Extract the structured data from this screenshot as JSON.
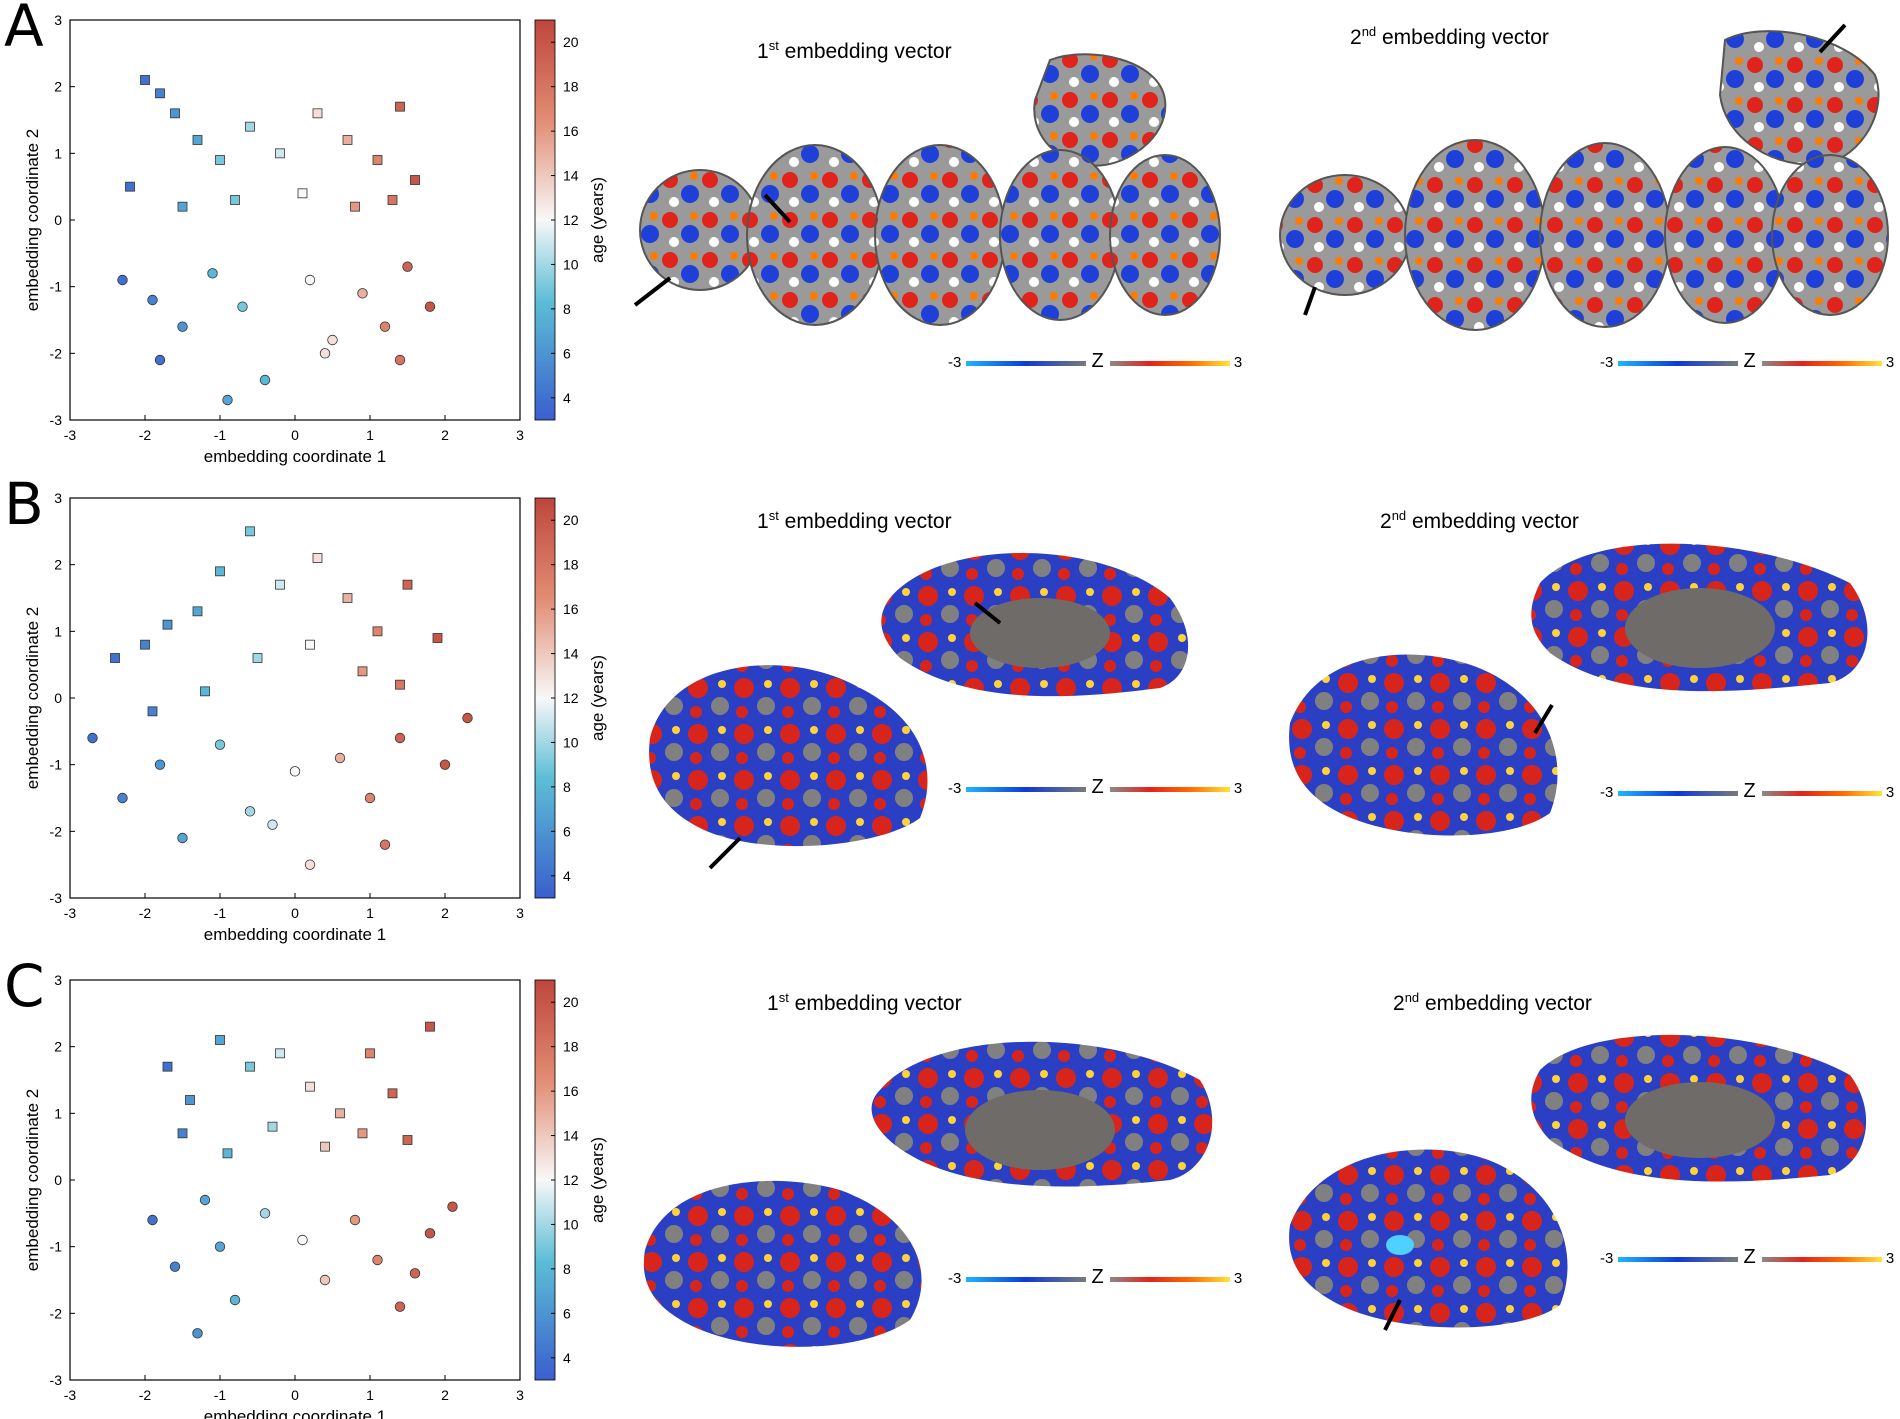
{
  "panels": [
    {
      "letter": "A",
      "xlabel": "embedding coordinate 1",
      "ylabel": "embedding coordinate 2",
      "colorbar_label": "age (years)",
      "colorbar_ticks": [
        "20",
        "18",
        "16",
        "14",
        "12",
        "10",
        "8",
        "6",
        "4"
      ],
      "x_ticks": [
        "-3",
        "-2",
        "-1",
        "0",
        "1",
        "2",
        "3"
      ],
      "y_ticks": [
        "3",
        "2",
        "1",
        "0",
        "-1",
        "-2",
        "-3"
      ],
      "vec1_ord": "1",
      "vec1_sup": "st",
      "vec1_rest": " embedding vector",
      "vec2_ord": "2",
      "vec2_sup": "nd",
      "vec2_rest": " embedding vector",
      "z_min": "-3",
      "z_label": "Z",
      "z_max": "3"
    },
    {
      "letter": "B",
      "xlabel": "embedding coordinate 1",
      "ylabel": "embedding coordinate 2",
      "colorbar_label": "age (years)",
      "colorbar_ticks": [
        "20",
        "18",
        "16",
        "14",
        "12",
        "10",
        "8",
        "6",
        "4"
      ],
      "x_ticks": [
        "-3",
        "-2",
        "-1",
        "0",
        "1",
        "2",
        "3"
      ],
      "y_ticks": [
        "3",
        "2",
        "1",
        "0",
        "-1",
        "-2",
        "-3"
      ],
      "vec1_ord": "1",
      "vec1_sup": "st",
      "vec1_rest": " embedding vector",
      "vec2_ord": "2",
      "vec2_sup": "nd",
      "vec2_rest": " embedding vector",
      "z_min": "-3",
      "z_label": "Z",
      "z_max": "3"
    },
    {
      "letter": "C",
      "xlabel": "embedding coordinate 1",
      "ylabel": "embedding coordinate 2",
      "colorbar_label": "age (years)",
      "colorbar_ticks": [
        "20",
        "18",
        "16",
        "14",
        "12",
        "10",
        "8",
        "6",
        "4"
      ],
      "x_ticks": [
        "-3",
        "-2",
        "-1",
        "0",
        "1",
        "2",
        "3"
      ],
      "y_ticks": [
        "3",
        "2",
        "1",
        "0",
        "-1",
        "-2",
        "-3"
      ],
      "vec1_ord": "1",
      "vec1_sup": "st",
      "vec1_rest": " embedding vector",
      "vec2_ord": "2",
      "vec2_sup": "nd",
      "vec2_rest": " embedding vector",
      "z_min": "-3",
      "z_label": "Z",
      "z_max": "3"
    }
  ],
  "chart_data": [
    {
      "type": "scatter",
      "title": "",
      "xlabel": "embedding coordinate 1",
      "ylabel": "embedding coordinate 2",
      "xlim": [
        -3,
        3
      ],
      "ylim": [
        -3,
        3
      ],
      "colorbar": {
        "label": "age (years)",
        "range": [
          3,
          21
        ],
        "colormap": "blue-white-red"
      },
      "markers": "squares and circles",
      "series": [
        {
          "values": [
            [
              -2.0,
              2.1,
              4
            ],
            [
              -1.8,
              1.9,
              5
            ],
            [
              -1.6,
              1.6,
              6
            ],
            [
              -1.3,
              1.2,
              7
            ],
            [
              -1.0,
              0.9,
              9
            ],
            [
              -0.6,
              1.4,
              10
            ],
            [
              -0.2,
              1.0,
              11
            ],
            [
              0.3,
              1.6,
              13
            ],
            [
              0.7,
              1.2,
              15
            ],
            [
              1.1,
              0.9,
              17
            ],
            [
              1.4,
              1.7,
              19
            ],
            [
              1.6,
              0.6,
              20
            ],
            [
              -2.2,
              0.5,
              4
            ],
            [
              -1.5,
              0.2,
              7
            ],
            [
              -0.8,
              0.3,
              9
            ],
            [
              0.1,
              0.4,
              12
            ],
            [
              0.8,
              0.2,
              16
            ],
            [
              1.3,
              0.3,
              18
            ]
          ]
        },
        {
          "values": [
            [
              -2.3,
              -0.9,
              4
            ],
            [
              -1.9,
              -1.2,
              5
            ],
            [
              -1.5,
              -1.6,
              6
            ],
            [
              -1.1,
              -0.8,
              8
            ],
            [
              -0.7,
              -1.3,
              9
            ],
            [
              -0.4,
              -2.4,
              8
            ],
            [
              0.2,
              -0.9,
              12
            ],
            [
              0.5,
              -1.8,
              13
            ],
            [
              0.9,
              -1.1,
              15
            ],
            [
              1.2,
              -1.6,
              17
            ],
            [
              1.5,
              -0.7,
              19
            ],
            [
              1.8,
              -1.3,
              20
            ],
            [
              -1.8,
              -2.1,
              4
            ],
            [
              -0.9,
              -2.7,
              7
            ],
            [
              0.4,
              -2.0,
              13
            ],
            [
              1.4,
              -2.1,
              18
            ]
          ]
        }
      ]
    },
    {
      "type": "scatter",
      "title": "",
      "xlabel": "embedding coordinate 1",
      "ylabel": "embedding coordinate 2",
      "xlim": [
        -3,
        3
      ],
      "ylim": [
        -3,
        3
      ],
      "colorbar": {
        "label": "age (years)",
        "range": [
          3,
          21
        ],
        "colormap": "blue-white-red"
      },
      "markers": "squares and circles",
      "series": [
        {
          "values": [
            [
              -2.4,
              0.6,
              4
            ],
            [
              -2.0,
              0.8,
              5
            ],
            [
              -1.7,
              1.1,
              6
            ],
            [
              -1.3,
              1.3,
              7
            ],
            [
              -1.0,
              1.9,
              8
            ],
            [
              -0.6,
              2.5,
              9
            ],
            [
              -0.2,
              1.7,
              11
            ],
            [
              0.3,
              2.1,
              13
            ],
            [
              0.7,
              1.5,
              15
            ],
            [
              1.1,
              1.0,
              17
            ],
            [
              1.5,
              1.7,
              19
            ],
            [
              1.9,
              0.9,
              20
            ],
            [
              -1.9,
              -0.2,
              5
            ],
            [
              -1.2,
              0.1,
              8
            ],
            [
              -0.5,
              0.6,
              10
            ],
            [
              0.2,
              0.8,
              12
            ],
            [
              0.9,
              0.4,
              16
            ],
            [
              1.4,
              0.2,
              18
            ]
          ]
        },
        {
          "values": [
            [
              -2.7,
              -0.6,
              4
            ],
            [
              -2.3,
              -1.5,
              5
            ],
            [
              -1.8,
              -1.0,
              6
            ],
            [
              -1.5,
              -2.1,
              7
            ],
            [
              -1.0,
              -0.7,
              9
            ],
            [
              -0.6,
              -1.7,
              10
            ],
            [
              0.0,
              -1.1,
              12
            ],
            [
              0.2,
              -2.5,
              13
            ],
            [
              0.6,
              -0.9,
              15
            ],
            [
              1.0,
              -1.5,
              17
            ],
            [
              1.4,
              -0.6,
              19
            ],
            [
              2.0,
              -1.0,
              20
            ],
            [
              2.3,
              -0.3,
              20
            ],
            [
              -0.3,
              -1.9,
              11
            ],
            [
              1.2,
              -2.2,
              18
            ]
          ]
        }
      ]
    },
    {
      "type": "scatter",
      "title": "",
      "xlabel": "embedding coordinate 1",
      "ylabel": "embedding coordinate 2",
      "xlim": [
        -3,
        3
      ],
      "ylim": [
        -3,
        3
      ],
      "colorbar": {
        "label": "age (years)",
        "range": [
          3,
          21
        ],
        "colormap": "blue-white-red"
      },
      "markers": "squares and circles",
      "series": [
        {
          "values": [
            [
              -1.7,
              1.7,
              4
            ],
            [
              -1.4,
              1.2,
              6
            ],
            [
              -1.0,
              2.1,
              7
            ],
            [
              -0.6,
              1.7,
              9
            ],
            [
              -0.2,
              1.9,
              11
            ],
            [
              0.2,
              1.4,
              13
            ],
            [
              0.6,
              1.0,
              15
            ],
            [
              1.0,
              1.9,
              17
            ],
            [
              1.3,
              1.3,
              19
            ],
            [
              1.8,
              2.3,
              20
            ],
            [
              -1.5,
              0.7,
              5
            ],
            [
              -0.9,
              0.4,
              8
            ],
            [
              -0.3,
              0.8,
              10
            ],
            [
              0.4,
              0.5,
              14
            ],
            [
              0.9,
              0.7,
              16
            ],
            [
              1.5,
              0.6,
              19
            ]
          ]
        },
        {
          "values": [
            [
              -1.9,
              -0.6,
              4
            ],
            [
              -1.6,
              -1.3,
              5
            ],
            [
              -1.3,
              -2.3,
              6
            ],
            [
              -1.0,
              -1.0,
              7
            ],
            [
              -0.8,
              -1.8,
              8
            ],
            [
              -0.4,
              -0.5,
              10
            ],
            [
              0.1,
              -0.9,
              12
            ],
            [
              0.4,
              -1.5,
              14
            ],
            [
              0.8,
              -0.6,
              16
            ],
            [
              1.1,
              -1.2,
              17
            ],
            [
              1.4,
              -1.9,
              19
            ],
            [
              1.8,
              -0.8,
              20
            ],
            [
              2.1,
              -0.4,
              20
            ],
            [
              -1.2,
              -0.3,
              7
            ],
            [
              1.6,
              -1.4,
              19
            ]
          ]
        }
      ]
    }
  ]
}
